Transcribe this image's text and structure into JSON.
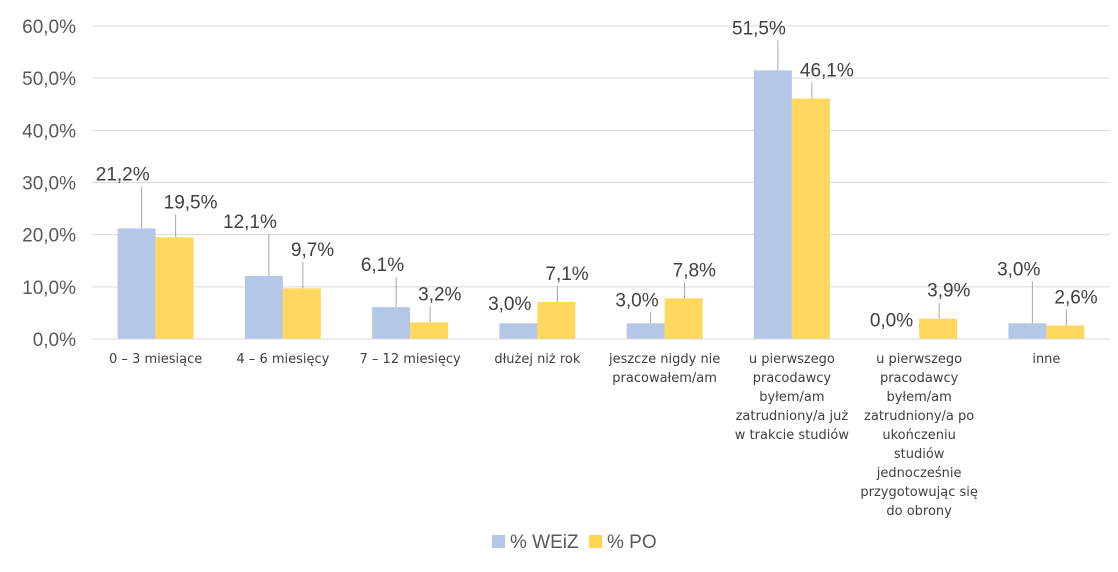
{
  "chart_data": {
    "type": "bar",
    "categories": [
      [
        "0 – 3 miesiące"
      ],
      [
        "4 – 6 miesięcy"
      ],
      [
        "7 – 12 miesięcy"
      ],
      [
        "dłużej niż rok"
      ],
      [
        "jeszcze nigdy nie",
        "pracowałem/am"
      ],
      [
        "u pierwszego",
        "pracodawcy",
        "byłem/am",
        "zatrudniony/a już",
        "w trakcie studiów"
      ],
      [
        "u pierwszego",
        "pracodawcy",
        "byłem/am",
        "zatrudniony/a po",
        "ukończeniu",
        "studiów",
        "jednocześnie",
        "przygotowując się",
        "do obrony"
      ],
      [
        "inne"
      ]
    ],
    "series": [
      {
        "name": "% WEiZ",
        "color": "#b4c7e7",
        "values": [
          21.2,
          12.1,
          6.1,
          3.0,
          3.0,
          51.5,
          0.0,
          3.0
        ],
        "labels": [
          "21,2%",
          "12,1%",
          "6,1%",
          "3,0%",
          "3,0%",
          "51,5%",
          "0,0%",
          "3,0%"
        ]
      },
      {
        "name": "% PO",
        "color": "#ffd54f",
        "values": [
          19.5,
          9.7,
          3.2,
          7.1,
          7.8,
          46.1,
          3.9,
          2.6
        ],
        "labels": [
          "19,5%",
          "9,7%",
          "3,2%",
          "7,1%",
          "7,8%",
          "46,1%",
          "3,9%",
          "2,6%"
        ]
      }
    ],
    "ylim": [
      0,
      60
    ],
    "yticks": [
      0,
      10,
      20,
      30,
      40,
      50,
      60
    ],
    "ytick_labels": [
      "0,0%",
      "10,0%",
      "20,0%",
      "30,0%",
      "40,0%",
      "50,0%",
      "60,0%"
    ],
    "grid": true,
    "legend_position": "bottom",
    "title": "",
    "xlabel": "",
    "ylabel": ""
  }
}
